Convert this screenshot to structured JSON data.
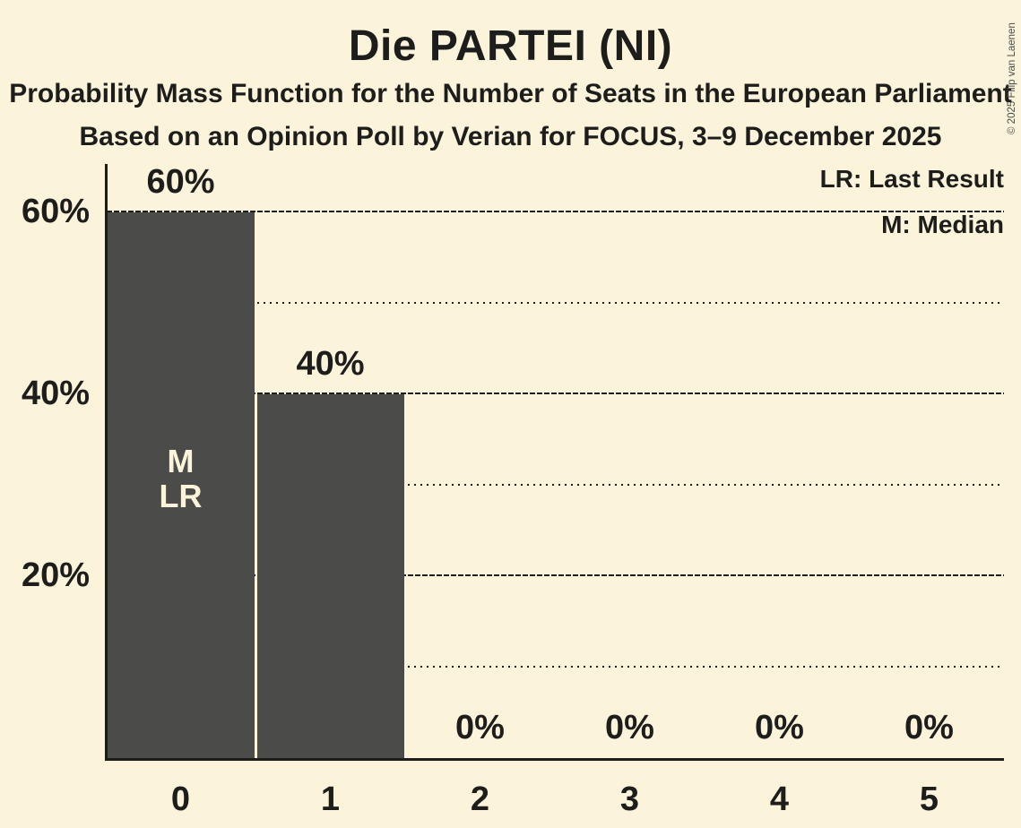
{
  "header": {
    "title": "Die PARTEI (NI)",
    "subtitle": "Probability Mass Function for the Number of Seats in the European Parliament",
    "poll_info": "Based on an Opinion Poll by Verian for FOCUS, 3–9 December 2025"
  },
  "legend": {
    "lr": "LR: Last Result",
    "m": "M: Median"
  },
  "meta": {
    "copyright": "© 2025 Filip van Laenen"
  },
  "colors": {
    "background": "#FBF4DB",
    "bar": "#4B4B49",
    "text": "#1D1D1B"
  },
  "chart_data": {
    "type": "bar",
    "title": "Die PARTEI (NI)",
    "xlabel": "",
    "ylabel": "",
    "categories": [
      "0",
      "1",
      "2",
      "3",
      "4",
      "5"
    ],
    "values": [
      60,
      40,
      0,
      0,
      0,
      0
    ],
    "value_labels": [
      "60%",
      "40%",
      "0%",
      "0%",
      "0%",
      "0%"
    ],
    "bar_annotations": [
      {
        "category_index": 0,
        "lines": [
          "M",
          "LR"
        ]
      }
    ],
    "yticks": [
      20,
      40,
      60
    ],
    "ytick_labels": [
      "20%",
      "40%",
      "60%"
    ],
    "minor_yticks": [
      10,
      30,
      50
    ],
    "ylim": [
      0,
      65
    ],
    "grid": "horizontal",
    "legend_position": "top-right"
  }
}
